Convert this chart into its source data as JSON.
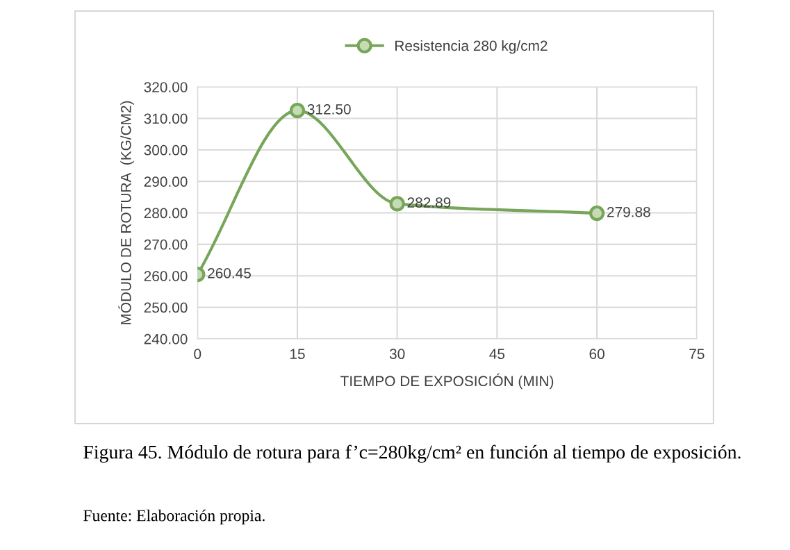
{
  "chart_data": {
    "type": "line",
    "xlabel": "TIEMPO DE EXPOSICIÓN (MIN)",
    "ylabel": "MÓDULO DE ROTURA  (KG/CM2)",
    "x": [
      0,
      15,
      30,
      60
    ],
    "series": [
      {
        "name": "Resistencia 280 kg/cm2",
        "color": "#77a55a",
        "values": [
          260.45,
          312.5,
          282.89,
          279.88
        ],
        "value_labels": [
          "260.45",
          "312.50",
          "282.89",
          "279.88"
        ]
      }
    ],
    "xlim": [
      0,
      75
    ],
    "xticks": [
      0,
      15,
      30,
      45,
      60,
      75
    ],
    "ylim": [
      240,
      320
    ],
    "yticks": [
      {
        "value": 240,
        "label": "240.00"
      },
      {
        "value": 250,
        "label": "250.00"
      },
      {
        "value": 260,
        "label": "260.00"
      },
      {
        "value": 270,
        "label": "270.00"
      },
      {
        "value": 280,
        "label": "280.00"
      },
      {
        "value": 290,
        "label": "290.00"
      },
      {
        "value": 300,
        "label": "300.00"
      },
      {
        "value": 310,
        "label": "310.00"
      },
      {
        "value": 320,
        "label": "320.00"
      }
    ],
    "grid": true,
    "legend": "top",
    "marker": "circle",
    "line_style": "solid",
    "annotations": [
      "Figura 45. Módulo de rotura para f’c=280kg/cm² en función al tiempo de exposición.",
      "Fuente: Elaboración propia."
    ]
  }
}
